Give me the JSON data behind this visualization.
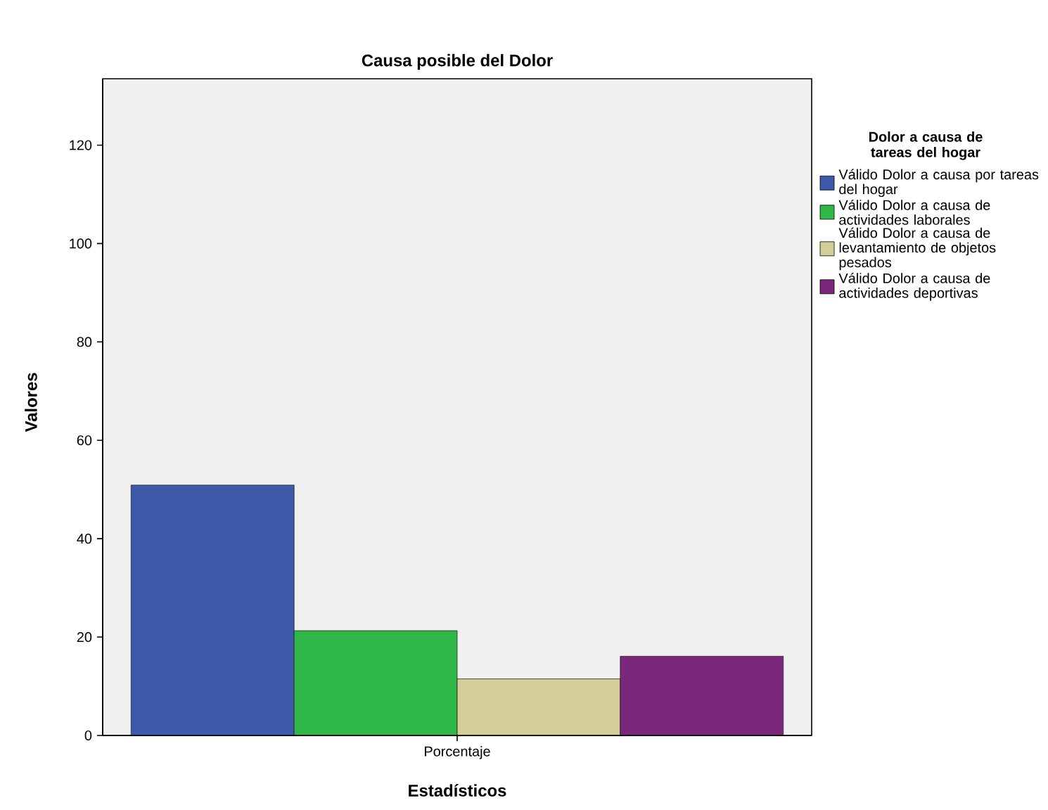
{
  "chart_data": {
    "type": "bar",
    "title": "Causa posible del Dolor",
    "xlabel": "Estadísticos",
    "ylabel": "Valores",
    "legend_title": "Dolor a causa de tareas del hogar",
    "categories": [
      "Porcentaje"
    ],
    "series": [
      {
        "name": "Válido Dolor a causa por tareas del hogar",
        "color": "#3e58aa",
        "values": [
          50.9
        ]
      },
      {
        "name": "Válido Dolor a causa de actividades laborales",
        "color": "#2fb847",
        "values": [
          21.3
        ]
      },
      {
        "name": "Válido Dolor a causa de levantamiento de objetos pesados",
        "color": "#d3ce97",
        "values": [
          11.5
        ]
      },
      {
        "name": "Válido Dolor a causa de actividades deportivas",
        "color": "#7b277b",
        "values": [
          16.1
        ]
      }
    ],
    "ylim": [
      0,
      133.5
    ],
    "yticks": [
      0,
      20,
      40,
      60,
      80,
      100,
      120
    ],
    "legend": "right"
  }
}
